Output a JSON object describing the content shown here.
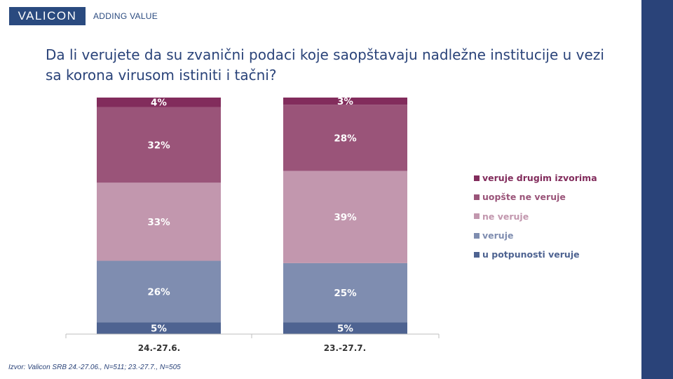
{
  "brand": {
    "logo_text": "VALICON",
    "tagline": "ADDING VALUE",
    "color": "#2a4a7f",
    "side_bar_color": "#2a4379"
  },
  "chart_data": {
    "type": "bar",
    "stacked": true,
    "title": "Da li verujete da su zvanični podaci koje saopštavaju nadležne institucije u vezi sa korona virusom istiniti i tačni?",
    "categories": [
      "24.-27.6.",
      "23.-27.7."
    ],
    "series": [
      {
        "name": "u potpunosti veruje",
        "values": [
          5,
          5
        ],
        "labels": [
          "5%",
          "5%"
        ],
        "color": "#4e6391",
        "legend_color": "#4e6391"
      },
      {
        "name": "veruje",
        "values": [
          26,
          25
        ],
        "labels": [
          "26%",
          "25%"
        ],
        "color": "#7f8db0",
        "legend_color": "#7f8db0"
      },
      {
        "name": "ne veruje",
        "values": [
          33,
          39
        ],
        "labels": [
          "33%",
          "39%"
        ],
        "color": "#c297ae",
        "legend_color": "#c297ae"
      },
      {
        "name": "uopšte ne veruje",
        "values": [
          32,
          28
        ],
        "labels": [
          "32%",
          "28%"
        ],
        "color": "#9a5479",
        "legend_color": "#9a5479"
      },
      {
        "name": "veruje drugim izvorima",
        "values": [
          4,
          3
        ],
        "labels": [
          "4%",
          "3%"
        ],
        "color": "#822c5c",
        "legend_color": "#822c5c"
      }
    ],
    "ylim": [
      0,
      100
    ],
    "grid": false,
    "legend_position": "right",
    "label_color": "#ffffff"
  },
  "source": "Izvor: Valicon SRB 24.-27.06., N=511; 23.-27.7., N=505"
}
